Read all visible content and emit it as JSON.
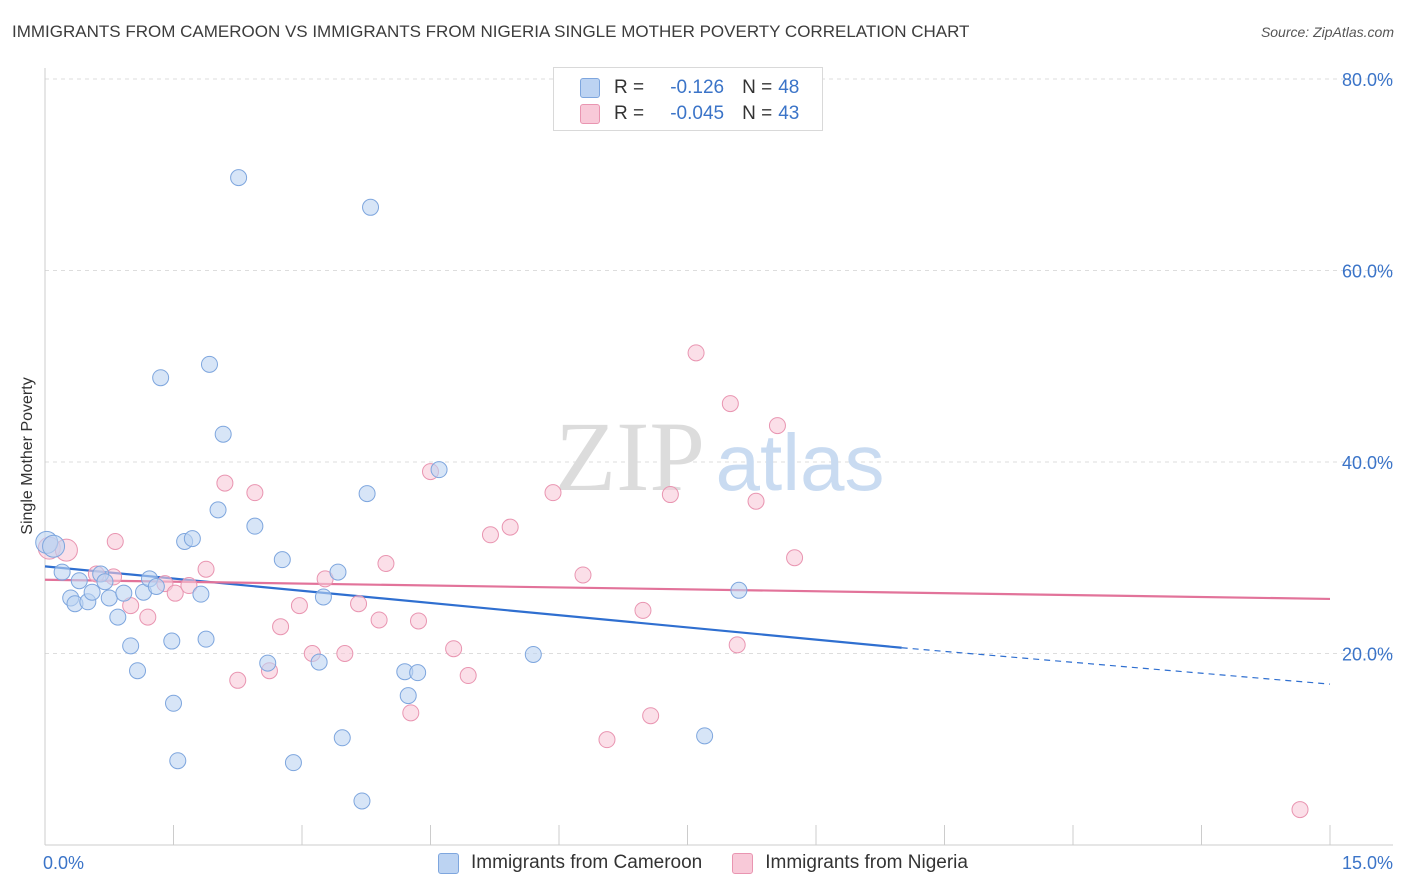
{
  "title": "IMMIGRANTS FROM CAMEROON VS IMMIGRANTS FROM NIGERIA SINGLE MOTHER POVERTY CORRELATION CHART",
  "source": "Source: ZipAtlas.com",
  "watermark": {
    "zip": "ZIP",
    "atlas": "atlas"
  },
  "legend": {
    "r_label": "R =",
    "n_label": "N =",
    "rows": [
      {
        "r": "-0.126",
        "n": "48"
      },
      {
        "r": "-0.045",
        "n": "43"
      }
    ]
  },
  "colors": {
    "blue_fill": "#bcd3f2",
    "blue_stroke": "#7ea6de",
    "blue_line": "#2f6fd0",
    "pink_fill": "#f8c9d8",
    "pink_stroke": "#e995b1",
    "pink_line": "#e2739a",
    "axis_text": "#3b74c8",
    "grid": "#dddddd"
  },
  "chart_data": {
    "type": "scatter",
    "title": "IMMIGRANTS FROM CAMEROON VS IMMIGRANTS FROM NIGERIA SINGLE MOTHER POVERTY CORRELATION CHART",
    "xlabel": "",
    "ylabel": "Single Mother Poverty",
    "xlim": [
      0,
      15
    ],
    "ylim": [
      0,
      80
    ],
    "x_tick_labels": [
      "0.0%",
      "15.0%"
    ],
    "y_ticks": [
      20,
      40,
      60,
      80
    ],
    "y_tick_labels": [
      "20.0%",
      "40.0%",
      "60.0%",
      "80.0%"
    ],
    "grid": true,
    "legend_position": "bottom",
    "series": [
      {
        "name": "Immigrants from Cameroon",
        "r": -0.126,
        "n": 48,
        "trend": {
          "x": [
            0,
            10
          ],
          "y": [
            29.1,
            20.6
          ],
          "dashed_to_x": 15,
          "dashed_to_y": 16.8
        },
        "points": [
          [
            0.02,
            31.6
          ],
          [
            0.1,
            31.2
          ],
          [
            0.2,
            28.5
          ],
          [
            0.3,
            25.8
          ],
          [
            0.35,
            25.2
          ],
          [
            0.4,
            27.6
          ],
          [
            0.5,
            25.4
          ],
          [
            0.55,
            26.4
          ],
          [
            0.65,
            28.3
          ],
          [
            0.7,
            27.5
          ],
          [
            0.75,
            25.8
          ],
          [
            0.85,
            23.8
          ],
          [
            0.92,
            26.3
          ],
          [
            1.0,
            20.8
          ],
          [
            1.08,
            18.2
          ],
          [
            1.15,
            26.4
          ],
          [
            1.22,
            27.8
          ],
          [
            1.3,
            27.0
          ],
          [
            1.35,
            48.8
          ],
          [
            1.48,
            21.3
          ],
          [
            1.5,
            14.8
          ],
          [
            1.55,
            8.8
          ],
          [
            1.63,
            31.7
          ],
          [
            1.72,
            32.0
          ],
          [
            1.82,
            26.2
          ],
          [
            1.88,
            21.5
          ],
          [
            1.92,
            50.2
          ],
          [
            2.02,
            35.0
          ],
          [
            2.08,
            42.9
          ],
          [
            2.26,
            69.7
          ],
          [
            2.45,
            33.3
          ],
          [
            2.6,
            19.0
          ],
          [
            2.77,
            29.8
          ],
          [
            2.9,
            8.6
          ],
          [
            3.2,
            19.1
          ],
          [
            3.25,
            25.9
          ],
          [
            3.42,
            28.5
          ],
          [
            3.47,
            11.2
          ],
          [
            3.7,
            4.6
          ],
          [
            3.76,
            36.7
          ],
          [
            3.8,
            66.6
          ],
          [
            4.2,
            18.1
          ],
          [
            4.24,
            15.6
          ],
          [
            4.35,
            18.0
          ],
          [
            4.6,
            39.2
          ],
          [
            5.7,
            19.9
          ],
          [
            7.7,
            11.4
          ],
          [
            8.1,
            26.6
          ]
        ]
      },
      {
        "name": "Immigrants from Nigeria",
        "r": -0.045,
        "n": 43,
        "trend": {
          "x": [
            0,
            15
          ],
          "y": [
            27.7,
            25.7
          ]
        },
        "points": [
          [
            0.05,
            31.0
          ],
          [
            0.25,
            30.8
          ],
          [
            0.6,
            28.3
          ],
          [
            0.8,
            28.0
          ],
          [
            0.82,
            31.7
          ],
          [
            1.0,
            25.0
          ],
          [
            1.2,
            23.8
          ],
          [
            1.4,
            27.3
          ],
          [
            1.52,
            26.3
          ],
          [
            1.68,
            27.1
          ],
          [
            1.88,
            28.8
          ],
          [
            2.1,
            37.8
          ],
          [
            2.25,
            17.2
          ],
          [
            2.45,
            36.8
          ],
          [
            2.62,
            18.2
          ],
          [
            2.75,
            22.8
          ],
          [
            2.97,
            25.0
          ],
          [
            3.12,
            20.0
          ],
          [
            3.27,
            27.8
          ],
          [
            3.5,
            20.0
          ],
          [
            3.66,
            25.2
          ],
          [
            3.9,
            23.5
          ],
          [
            3.98,
            29.4
          ],
          [
            4.27,
            13.8
          ],
          [
            4.36,
            23.4
          ],
          [
            4.5,
            39.0
          ],
          [
            4.77,
            20.5
          ],
          [
            4.94,
            17.7
          ],
          [
            5.2,
            32.4
          ],
          [
            5.43,
            33.2
          ],
          [
            5.93,
            36.8
          ],
          [
            6.28,
            28.2
          ],
          [
            6.56,
            11.0
          ],
          [
            6.98,
            24.5
          ],
          [
            7.07,
            13.5
          ],
          [
            7.3,
            36.6
          ],
          [
            7.6,
            51.4
          ],
          [
            8.0,
            46.1
          ],
          [
            8.08,
            20.9
          ],
          [
            8.3,
            35.9
          ],
          [
            8.55,
            43.8
          ],
          [
            8.75,
            30.0
          ],
          [
            14.65,
            3.7
          ]
        ]
      }
    ]
  },
  "bottom_legend": [
    "Immigrants from Cameroon",
    "Immigrants from Nigeria"
  ]
}
